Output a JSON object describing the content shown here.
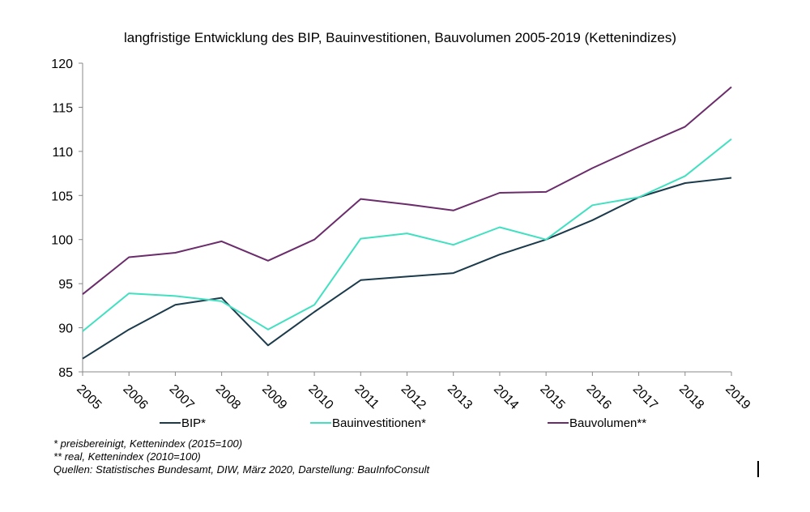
{
  "chart_data": {
    "type": "line",
    "title": "langfristige Entwicklung des BIP, Bauinvestitionen, Bauvolumen 2005-2019 (Kettenindizes)",
    "x": [
      "2005",
      "2006",
      "2007",
      "2008",
      "2009",
      "2010",
      "2011",
      "2012",
      "2013",
      "2014",
      "2015",
      "2016",
      "2017",
      "2018",
      "2019"
    ],
    "ylim": [
      85,
      120
    ],
    "yticks": [
      "85",
      "90",
      "95",
      "100",
      "105",
      "110",
      "115",
      "120"
    ],
    "grid": false,
    "legend_position": "bottom",
    "series": [
      {
        "name": "BIP*",
        "color": "#1b3a4b",
        "values": [
          86.5,
          89.8,
          92.6,
          93.4,
          88.0,
          91.8,
          95.4,
          95.8,
          96.2,
          98.3,
          100.0,
          102.2,
          104.8,
          106.4,
          107.0
        ]
      },
      {
        "name": "Bauinvestitionen*",
        "color": "#40e0c0",
        "values": [
          89.6,
          93.9,
          93.6,
          93.0,
          89.8,
          92.6,
          100.1,
          100.7,
          99.4,
          101.4,
          100.0,
          103.9,
          104.8,
          107.2,
          111.4
        ]
      },
      {
        "name": "Bauvolumen**",
        "color": "#6b2c6b",
        "values": [
          93.8,
          98.0,
          98.5,
          99.8,
          97.6,
          100.0,
          104.6,
          104.0,
          103.3,
          105.3,
          105.4,
          108.1,
          110.5,
          112.8,
          117.3
        ]
      }
    ]
  },
  "footnotes": [
    "* preisbereinigt, Kettenindex (2015=100)",
    "** real, Kettenindex (2010=100)",
    "Quellen: Statistisches Bundesamt, DIW, März 2020, Darstellung: BauInfoConsult"
  ]
}
